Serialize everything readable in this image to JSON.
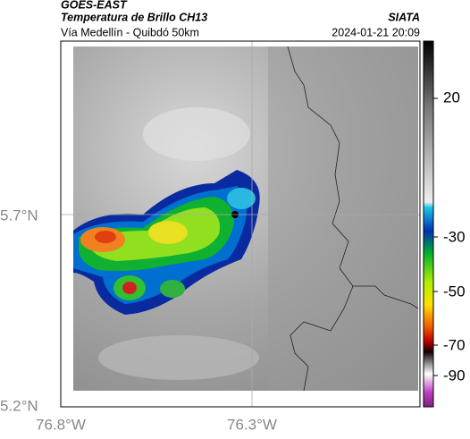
{
  "header": {
    "source": "GOES-EAST",
    "title": "Temperatura de Brillo CH13",
    "org": "SIATA",
    "subtitle": "Vía Medellín - Quibdó 50km",
    "datetime": "2024-01-21 20:09"
  },
  "axes": {
    "lat_labels": [
      "5.7°N",
      "5.2°N"
    ],
    "lon_labels": [
      "76.8°W",
      "76.3°W"
    ]
  },
  "colorbar": {
    "labels": [
      "20",
      "-30",
      "-50",
      "-70",
      "-90"
    ]
  }
}
